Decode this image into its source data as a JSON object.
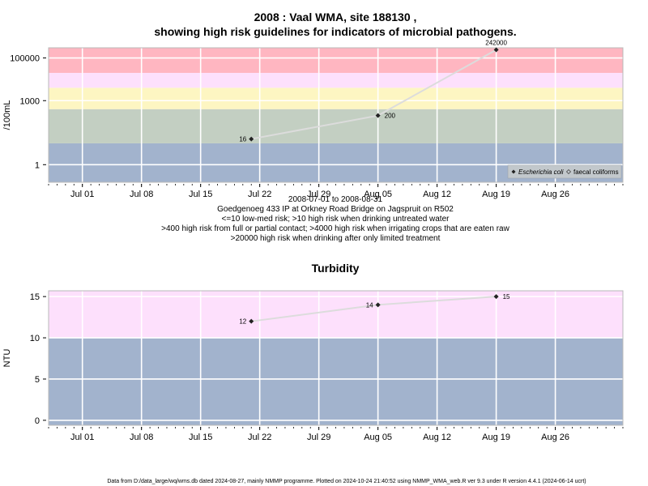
{
  "footer": "Data from D:/data_large/wq/wms.db dated 2024-08-27, mainly NMMP programme. Plotted on 2024-10-24 21:40:52 using NMMP_WMA_web.R ver 9.3 under R version 4.4.1 (2024-06-14 ucrt)",
  "colors": {
    "band_high": "#ffb6c1",
    "band_pink": "#fde0fc",
    "band_yellow": "#fdf6c2",
    "band_green": "#c3cfc2",
    "band_blue": "#a2b3cd",
    "band_gray": "#c2c8cc",
    "line": "#dcdcdc",
    "marker": "#222222"
  },
  "chart_data": [
    {
      "type": "line",
      "title_line1": "2008 : Vaal WMA, site 188130 ,",
      "title_line2": "showing high risk guidelines for indicators of microbial pathogens.",
      "ylabel": "/100mL",
      "y_scale": "log10",
      "ylim": [
        0.15,
        300000
      ],
      "yticks": [
        1,
        1000,
        100000
      ],
      "ytick_labels": [
        "1",
        "1000",
        "100000"
      ],
      "xlim": [
        "2008-06-27",
        "2008-09-03"
      ],
      "xticks": [
        "2008-07-01",
        "2008-07-08",
        "2008-07-15",
        "2008-07-22",
        "2008-07-29",
        "2008-08-05",
        "2008-08-12",
        "2008-08-19",
        "2008-08-26"
      ],
      "xtick_labels": [
        "Jul 01",
        "Jul 08",
        "Jul 15",
        "Jul 22",
        "Jul 29",
        "Aug 05",
        "Aug 12",
        "Aug 19",
        "Aug 26"
      ],
      "grid": true,
      "bands": [
        {
          "from": 0.15,
          "to": 10,
          "color": "band_blue"
        },
        {
          "from": 10,
          "to": 400,
          "color": "band_green"
        },
        {
          "from": 400,
          "to": 4000,
          "color": "band_yellow"
        },
        {
          "from": 4000,
          "to": 20000,
          "color": "band_pink"
        },
        {
          "from": 20000,
          "to": 300000,
          "color": "band_high"
        }
      ],
      "series": [
        {
          "name": "Escherichia coli",
          "x": [
            "2008-07-21",
            "2008-08-05",
            "2008-08-19"
          ],
          "values": [
            16,
            200,
            242000
          ],
          "labels": [
            "16",
            "200",
            "242000"
          ]
        }
      ],
      "legend": {
        "position": "bottom-right",
        "entries": [
          "Escherichia coli",
          "faecal coliforms"
        ]
      },
      "notes": [
        "2008-07-01 to 2008-08-31",
        "Goedgenoeg 433 IP at Orkney Road Bridge on Jagspruit on R502",
        "<=10 low-med risk; >10 high risk when drinking untreated water",
        ">400 high risk from full or partial contact; >4000 high risk when irrigating crops that are eaten raw",
        ">20000 high risk when drinking after only limited treatment"
      ]
    },
    {
      "type": "line",
      "title": "Turbidity",
      "ylabel": "NTU",
      "ylim": [
        -0.6,
        15.7
      ],
      "yticks": [
        0,
        5,
        10,
        15
      ],
      "ytick_labels": [
        "0",
        "5",
        "10",
        "15"
      ],
      "xlim": [
        "2008-06-27",
        "2008-09-03"
      ],
      "xticks": [
        "2008-07-01",
        "2008-07-08",
        "2008-07-15",
        "2008-07-22",
        "2008-07-29",
        "2008-08-05",
        "2008-08-12",
        "2008-08-19",
        "2008-08-26"
      ],
      "xtick_labels": [
        "Jul 01",
        "Jul 08",
        "Jul 15",
        "Jul 22",
        "Jul 29",
        "Aug 05",
        "Aug 12",
        "Aug 19",
        "Aug 26"
      ],
      "grid": true,
      "bands": [
        {
          "from": -0.6,
          "to": 10,
          "color": "band_blue"
        },
        {
          "from": 10,
          "to": 15.7,
          "color": "band_pink"
        }
      ],
      "series": [
        {
          "x": [
            "2008-07-21",
            "2008-08-05",
            "2008-08-19"
          ],
          "values": [
            12,
            14,
            15
          ],
          "labels": [
            "12",
            "14",
            "15"
          ]
        }
      ]
    }
  ]
}
